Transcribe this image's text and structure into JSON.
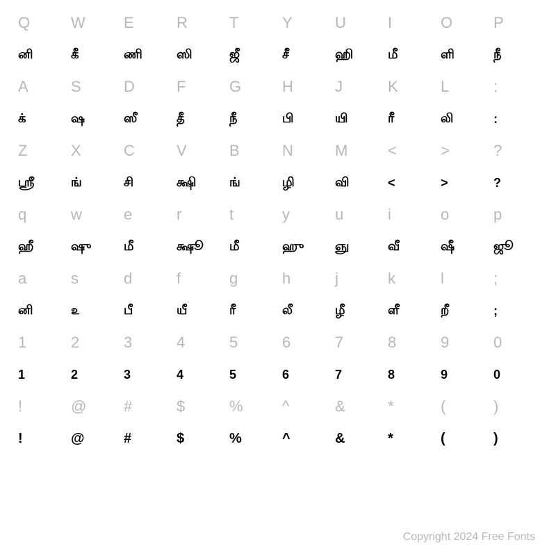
{
  "columns": 10,
  "rows": [
    {
      "type": "latin",
      "cells": [
        "Q",
        "W",
        "E",
        "R",
        "T",
        "Y",
        "U",
        "I",
        "O",
        "P"
      ]
    },
    {
      "type": "glyph",
      "cells": [
        "னி",
        "கீ",
        "ணி",
        "ஸி",
        "ஜீ",
        "சீ",
        "ஹி",
        "மீ",
        "ளி",
        "நீ"
      ]
    },
    {
      "type": "latin",
      "cells": [
        "A",
        "S",
        "D",
        "F",
        "G",
        "H",
        "J",
        "K",
        "L",
        ":"
      ]
    },
    {
      "type": "glyph",
      "cells": [
        "க்",
        "ஷ",
        "ஸீ",
        "தீ",
        "நீ",
        "பி",
        "யி",
        "ரீ",
        "லி",
        ":"
      ]
    },
    {
      "type": "latin",
      "cells": [
        "Z",
        "X",
        "C",
        "V",
        "B",
        "N",
        "M",
        "<",
        ">",
        "?"
      ]
    },
    {
      "type": "glyph",
      "cells": [
        "ஸ்ரீ",
        "ங்",
        "சி",
        "க்ஷி",
        "ங்",
        "ழி",
        "வி",
        "<",
        ">",
        "?"
      ]
    },
    {
      "type": "latin",
      "cells": [
        "q",
        "w",
        "e",
        "r",
        "t",
        "y",
        "u",
        "i",
        "o",
        "p"
      ]
    },
    {
      "type": "glyph",
      "cells": [
        "ஹீ",
        "ஷு",
        "மீ",
        "க்ஷூ",
        "மீ",
        "ஹு",
        "ஞு",
        "வீ",
        "ஷீ",
        "ஜூ"
      ]
    },
    {
      "type": "latin",
      "cells": [
        "a",
        "s",
        "d",
        "f",
        "g",
        "h",
        "j",
        "k",
        "l",
        ";"
      ]
    },
    {
      "type": "glyph",
      "cells": [
        "னி",
        "௨",
        "பீ",
        "யீ",
        "ரீ",
        "லீ",
        "ழீ",
        "ளீ",
        "றீ",
        ";"
      ]
    },
    {
      "type": "latin",
      "cells": [
        "1",
        "2",
        "3",
        "4",
        "5",
        "6",
        "7",
        "8",
        "9",
        "0"
      ]
    },
    {
      "type": "glyph",
      "cells": [
        "1",
        "2",
        "3",
        "4",
        "5",
        "6",
        "7",
        "8",
        "9",
        "0"
      ]
    },
    {
      "type": "latin",
      "cells": [
        "!",
        "@",
        "#",
        "$",
        "%",
        "^",
        "&",
        "*",
        "(",
        ")"
      ]
    },
    {
      "type": "glyph",
      "cells": [
        "!",
        "@",
        "#",
        "$",
        "%",
        "^",
        "&",
        "*",
        "(",
        ")"
      ]
    }
  ],
  "copyright": "Copyright 2024 Free Fonts",
  "colors": {
    "background": "#ffffff",
    "latin": "#b8b8b8",
    "glyph": "#000000",
    "copyright": "#b8b8b8"
  },
  "typography": {
    "latin_fontsize": 22,
    "glyph_fontsize": 18,
    "copyright_fontsize": 16
  }
}
